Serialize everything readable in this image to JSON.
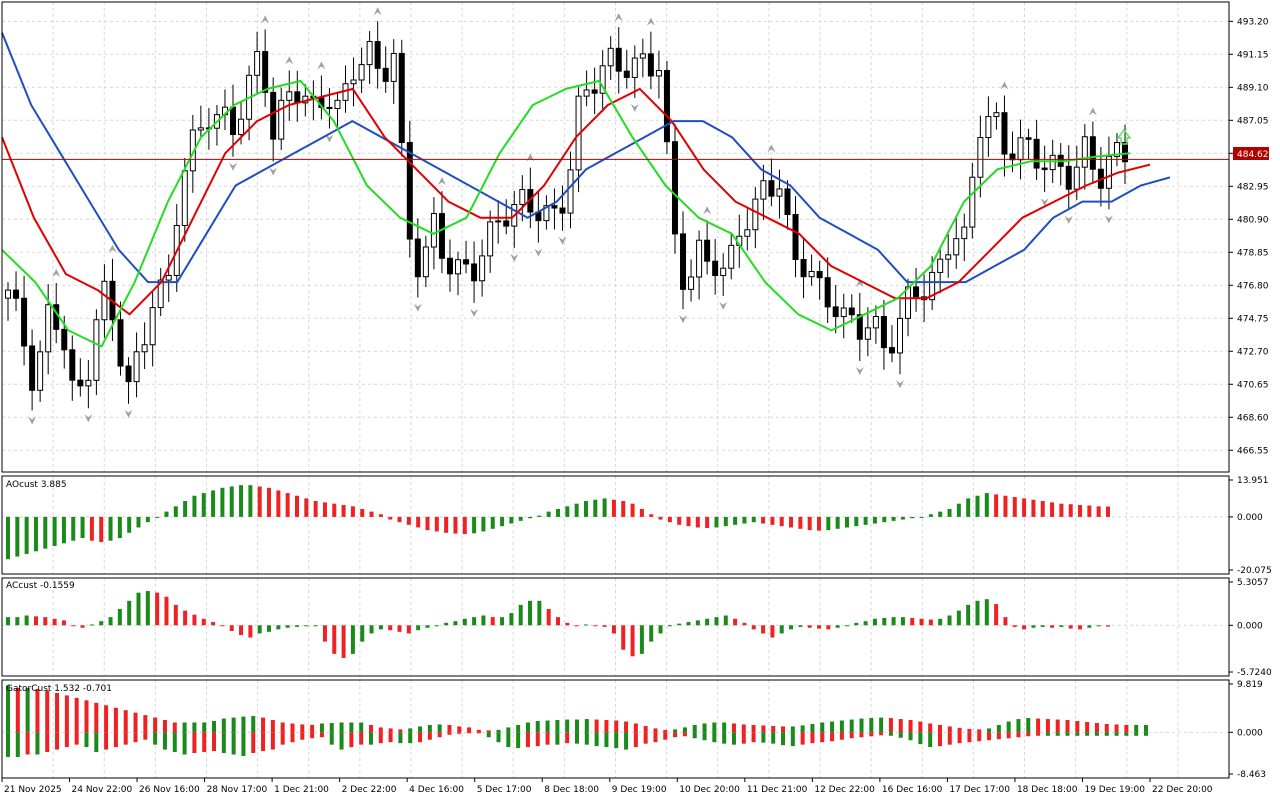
{
  "colors": {
    "background": "#ffffff",
    "grid": "#d8d8d8",
    "frame": "#000000",
    "bull_candle": "#ffffff",
    "bear_candle": "#000000",
    "jaw": "#1f4fbf",
    "teeth": "#e00000",
    "lips": "#22dd22",
    "hist_up": "#1a8a1a",
    "hist_down": "#ee2222",
    "price_line": "#b00000",
    "fractal": "#a0a0a0",
    "signal_arrow": "#66dd66"
  },
  "chart_data": [
    {
      "type": "candlestick",
      "panel": "main",
      "price_axis_ticks": [
        "493.20",
        "491.15",
        "489.10",
        "487.05",
        "485.00",
        "482.95",
        "480.90",
        "478.85",
        "476.80",
        "474.75",
        "472.70",
        "470.65",
        "468.60",
        "466.55"
      ],
      "ylim": [
        465.2,
        494.4
      ],
      "current_price": "484.62",
      "x_tick_labels": [
        "21 Nov 2025",
        "24 Nov 22:00",
        "26 Nov 16:00",
        "28 Nov 17:00",
        "1 Dec 21:00",
        "2 Dec 22:00",
        "4 Dec 16:00",
        "5 Dec 17:00",
        "8 Dec 18:00",
        "9 Dec 19:00",
        "10 Dec 20:00",
        "11 Dec 21:00",
        "12 Dec 22:00",
        "16 Dec 16:00",
        "17 Dec 17:00",
        "18 Dec 18:00",
        "19 Dec 19:00",
        "22 Dec 20:00"
      ],
      "ohlc_anchors": [
        476,
        474,
        471,
        475,
        474,
        469,
        472,
        477,
        474,
        470,
        473,
        477,
        476,
        483,
        486,
        488,
        487,
        486,
        489,
        492,
        486,
        488,
        489,
        488,
        489,
        487,
        490,
        492,
        490,
        491,
        480,
        478,
        481,
        478,
        477,
        478,
        480,
        481,
        481,
        482,
        482,
        481,
        482,
        488,
        490,
        491,
        490,
        490,
        491,
        491,
        480,
        476,
        479,
        479,
        477,
        480,
        481,
        484,
        483,
        478,
        478,
        477,
        476,
        474,
        474,
        475,
        473,
        474,
        476,
        477,
        478,
        480,
        479,
        487,
        488,
        485,
        485,
        485,
        485,
        484,
        483,
        485,
        484,
        485,
        484.62
      ],
      "series": [
        {
          "name": "Jaw",
          "values": [
            492.5,
            488,
            485,
            482,
            479,
            477,
            477,
            480,
            483,
            484,
            485,
            486,
            487,
            486,
            485,
            484,
            483,
            482,
            481,
            482,
            484,
            485,
            486,
            487,
            487,
            486,
            484,
            483,
            481,
            480,
            479,
            477,
            477,
            477,
            478,
            479,
            481,
            482,
            482,
            483,
            483.5
          ]
        },
        {
          "name": "Teeth",
          "values": [
            486,
            481,
            477.5,
            476.5,
            475,
            477,
            481,
            485,
            487,
            488,
            488.5,
            489,
            486,
            484,
            482,
            481,
            481,
            483,
            486,
            488,
            489,
            487,
            484,
            482,
            481,
            480,
            478,
            477,
            476,
            476,
            477,
            479,
            481,
            482,
            483,
            483.8,
            484.3
          ]
        },
        {
          "name": "Lips",
          "values": [
            479,
            477,
            474,
            473,
            477,
            482,
            486,
            488,
            489,
            489.5,
            487,
            483,
            481,
            480,
            481,
            485,
            488,
            489,
            489.5,
            486,
            483,
            481,
            480,
            477,
            475,
            474,
            475,
            476,
            478,
            482,
            484,
            484.5,
            484.5,
            484.8,
            485
          ]
        }
      ]
    },
    {
      "type": "bar",
      "panel": "AOcust",
      "label": "AOcust 3.885",
      "ticks": [
        "13.951",
        "0.000",
        "-20.075"
      ],
      "ylim": [
        -20.075,
        13.951
      ],
      "values": [
        -16,
        -15,
        -14,
        -13,
        -12,
        -11,
        -10,
        -9,
        -8,
        -9,
        -9.5,
        -9,
        -8,
        -6,
        -4,
        -2,
        0,
        2,
        4,
        6,
        8,
        9,
        10,
        11,
        11.5,
        12,
        12,
        11.5,
        11,
        10,
        9,
        8,
        7,
        6,
        5.5,
        5,
        4.5,
        4,
        3,
        2,
        1,
        -1,
        -2,
        -3,
        -4,
        -5,
        -5.5,
        -6,
        -6.3,
        -6.5,
        -6.2,
        -5.5,
        -4.5,
        -3.5,
        -2.5,
        -1.5,
        -0.5,
        0.5,
        2,
        3,
        4,
        5,
        6,
        6.5,
        7,
        6.5,
        6,
        5,
        3,
        1,
        -1,
        -2,
        -3,
        -3.5,
        -4,
        -4.2,
        -4,
        -3.5,
        -3,
        -2.5,
        -2,
        -2.5,
        -3,
        -3.5,
        -4,
        -4.5,
        -5,
        -5.2,
        -5,
        -4.5,
        -4,
        -3.5,
        -3,
        -2.5,
        -2,
        -1.5,
        -1,
        -0.5,
        0,
        1,
        2,
        3,
        5,
        7,
        8,
        9,
        8.5,
        8,
        7.5,
        7,
        6.5,
        6,
        5.5,
        5,
        4.8,
        4.5,
        4.3,
        4,
        3.9
      ]
    },
    {
      "type": "bar",
      "panel": "ACcust",
      "label": "ACcust -0.1559",
      "ticks": [
        "5.3057",
        "0.000",
        "-5.7240"
      ],
      "ylim": [
        -5.724,
        5.3057
      ],
      "values": [
        1,
        1,
        1.2,
        1.1,
        1,
        0.8,
        0.6,
        0,
        -0.3,
        0.1,
        0.5,
        1,
        2,
        3,
        4,
        4.2,
        4,
        3.5,
        2.5,
        1.8,
        1.3,
        0.8,
        0.4,
        0,
        -0.7,
        -1.2,
        -1.5,
        -1,
        -0.8,
        -0.5,
        -0.3,
        -0.2,
        -0.1,
        0,
        -2,
        -3.5,
        -4,
        -3.5,
        -2,
        -1,
        -0.5,
        -0.6,
        -0.8,
        -1,
        -0.6,
        -0.3,
        0,
        0.3,
        0.5,
        0.8,
        1,
        1.2,
        1,
        1,
        1.5,
        2.5,
        3,
        3,
        2,
        1,
        0.3,
        0,
        0.1,
        0,
        -0.2,
        -1,
        -3,
        -3.8,
        -3.5,
        -2,
        -1,
        0,
        0.2,
        0.4,
        0.6,
        0.8,
        1,
        1.2,
        0.8,
        0.3,
        -0.5,
        -1,
        -1.5,
        -1,
        -0.5,
        -0.2,
        -0.3,
        -0.4,
        -0.5,
        -0.3,
        0,
        0.3,
        0.5,
        0.8,
        0.9,
        1,
        1,
        0.9,
        0.8,
        0.7,
        0.8,
        1.2,
        1.8,
        2.5,
        3,
        3.2,
        2.6,
        1,
        -0.2,
        -0.5,
        -0.3,
        -0.2,
        -0.3,
        -0.2,
        -0.4,
        -0.5,
        -0.3,
        -0.1,
        -0.16
      ]
    },
    {
      "type": "bar",
      "panel": "GatorCust",
      "label": "GatorCust 1.532 -0.701",
      "ticks": [
        "9.819",
        "0.000",
        "-8.463"
      ],
      "ylim": [
        -8.463,
        9.819
      ],
      "upper": [
        9.5,
        9,
        9,
        8.8,
        8.5,
        8,
        7.5,
        7,
        6.5,
        6,
        5.5,
        5,
        4.5,
        4,
        3.5,
        3,
        2.5,
        2,
        2,
        2,
        2,
        2.3,
        2.8,
        3,
        3.2,
        3.3,
        3,
        2.5,
        2,
        1.8,
        1.6,
        1.5,
        1.8,
        1.9,
        2,
        2,
        2,
        1.5,
        1,
        0.8,
        0.6,
        0.8,
        1.2,
        1.5,
        1.6,
        1.5,
        1.2,
        1,
        0.5,
        0.4,
        0.5,
        1,
        1.5,
        2,
        2.3,
        2.4,
        2.5,
        2.6,
        2.6,
        2.7,
        2.6,
        2.5,
        2.4,
        2.2,
        1.8,
        1.3,
        0.8,
        0.5,
        0.6,
        1,
        1.5,
        1.8,
        2,
        2,
        1.8,
        1.6,
        1.5,
        1.4,
        1.3,
        1.2,
        1.2,
        1.4,
        1.7,
        2,
        2.2,
        2.4,
        2.6,
        2.8,
        2.9,
        3,
        2.9,
        2.7,
        2.5,
        2.2,
        1.8,
        1.5,
        1.2,
        0.9,
        0.7,
        0.6,
        0.8,
        1.5,
        2.2,
        2.7,
        2.9,
        2.8,
        2.7,
        2.6,
        2.5,
        2.3,
        2.1,
        1.9,
        1.7,
        1.6,
        1.5,
        1.5,
        1.5
      ],
      "lower": [
        -5,
        -5,
        -4.5,
        -4.5,
        -4,
        -3.5,
        -3,
        -2.5,
        -3,
        -4,
        -3.5,
        -3,
        -2.5,
        -2,
        -1.5,
        -2.5,
        -3.5,
        -4,
        -4.5,
        -4.2,
        -4,
        -3.8,
        -4.2,
        -4.5,
        -4.8,
        -4.2,
        -3.8,
        -3.5,
        -2.5,
        -2,
        -1.5,
        -1.2,
        -1,
        -2.5,
        -3.5,
        -3,
        -2.5,
        -2.5,
        -2.2,
        -2,
        -2.2,
        -2.2,
        -2,
        -1.5,
        -1,
        -0.5,
        -0.3,
        -0.2,
        -0.1,
        -1,
        -2,
        -3,
        -3.2,
        -3,
        -2.8,
        -2.5,
        -2.5,
        -2.2,
        -2.3,
        -2.5,
        -2.8,
        -3,
        -3.2,
        -3.5,
        -3,
        -2.3,
        -2,
        -1.5,
        -1,
        -0.8,
        -1.2,
        -1.6,
        -2,
        -2.3,
        -2.5,
        -2.3,
        -2,
        -2.1,
        -2.3,
        -2.6,
        -2.8,
        -2.5,
        -2.2,
        -2,
        -1.8,
        -1.5,
        -1.2,
        -1,
        -0.8,
        -0.6,
        -0.7,
        -1.1,
        -1.6,
        -2.4,
        -3,
        -2.8,
        -2.5,
        -2.2,
        -2,
        -1.8,
        -1.6,
        -1.4,
        -1.2,
        -1,
        -0.8,
        -0.7,
        -0.7,
        -0.7,
        -0.7,
        -0.7,
        -0.7,
        -0.7,
        -0.7,
        -0.7,
        -0.7,
        -0.7,
        -0.7
      ]
    }
  ]
}
